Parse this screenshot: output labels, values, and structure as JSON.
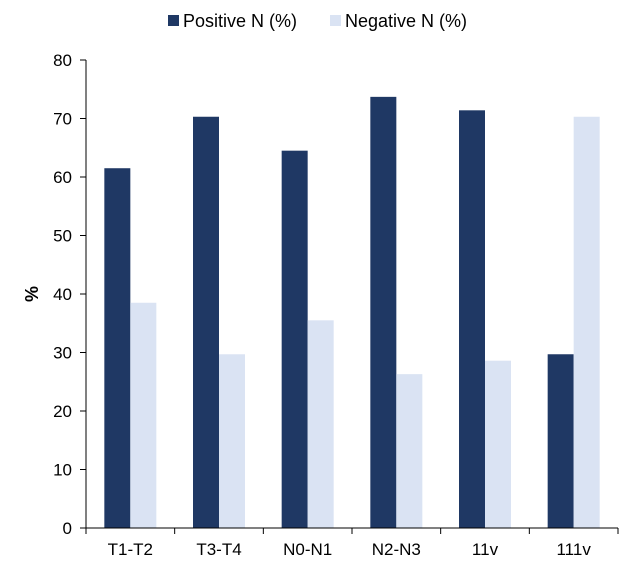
{
  "chart_data": {
    "type": "bar",
    "categories": [
      "T1-T2",
      "T3-T4",
      "N0-N1",
      "N2-N3",
      "11v",
      "111v"
    ],
    "series": [
      {
        "name": "Positive N (%)",
        "values": [
          61.5,
          70.3,
          64.5,
          73.7,
          71.4,
          29.7
        ],
        "color": "#1f3864"
      },
      {
        "name": "Negative N (%)",
        "values": [
          38.5,
          29.7,
          35.5,
          26.3,
          28.6,
          70.3
        ],
        "color": "#dae3f3"
      }
    ],
    "ylabel": "%",
    "ylim": [
      0,
      80
    ],
    "yticks": [
      0,
      10,
      20,
      30,
      40,
      50,
      60,
      70,
      80
    ],
    "grid": false,
    "legend_position": "top"
  }
}
